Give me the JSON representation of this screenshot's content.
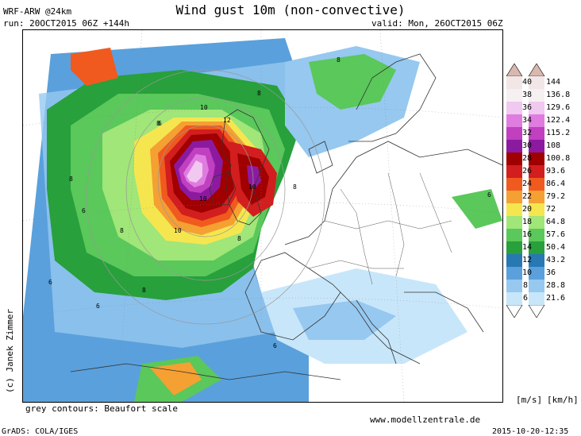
{
  "header": {
    "model": "WRF-ARW @24km",
    "title": "Wind gust 10m (non-convective)",
    "run": "run: 20OCT2015 06Z +144h",
    "valid": "valid: Mon, 26OCT2015 06Z"
  },
  "legend": {
    "units_left": "[m/s]",
    "units_right": "[km/h]",
    "levels": [
      {
        "mps": "40",
        "kmh": "144",
        "color": "#f2e6e6"
      },
      {
        "mps": "38",
        "kmh": "136.8",
        "color": "#f6f0f2"
      },
      {
        "mps": "36",
        "kmh": "129.6",
        "color": "#f0c8f0"
      },
      {
        "mps": "34",
        "kmh": "122.4",
        "color": "#e07ce0"
      },
      {
        "mps": "32",
        "kmh": "115.2",
        "color": "#c040c0"
      },
      {
        "mps": "30",
        "kmh": "108",
        "color": "#8c1aa0"
      },
      {
        "mps": "28",
        "kmh": "100.8",
        "color": "#a00000"
      },
      {
        "mps": "26",
        "kmh": "93.6",
        "color": "#d21e1e"
      },
      {
        "mps": "24",
        "kmh": "86.4",
        "color": "#f05a1e"
      },
      {
        "mps": "22",
        "kmh": "79.2",
        "color": "#f5a032"
      },
      {
        "mps": "20",
        "kmh": "72",
        "color": "#f5e650"
      },
      {
        "mps": "18",
        "kmh": "64.8",
        "color": "#a0e678"
      },
      {
        "mps": "16",
        "kmh": "57.6",
        "color": "#5ac85a"
      },
      {
        "mps": "14",
        "kmh": "50.4",
        "color": "#28a03c"
      },
      {
        "mps": "12",
        "kmh": "43.2",
        "color": "#2878b4"
      },
      {
        "mps": "10",
        "kmh": "36",
        "color": "#5aa0dc"
      },
      {
        "mps": "8",
        "kmh": "28.8",
        "color": "#96c8f0"
      },
      {
        "mps": "6",
        "kmh": "21.6",
        "color": "#c8e6fa"
      }
    ]
  },
  "footer": {
    "contours_note": "grey contours: Beaufort scale",
    "website": "www.modellzentrale.de",
    "grads": "GrADS: COLA/IGES",
    "timestamp": "2015-10-20-12:35",
    "copyright": "(c) Janek Zimmer"
  },
  "map": {
    "beaufort_labels": [
      "12",
      "10",
      "10",
      "10",
      "10",
      "8",
      "8",
      "8",
      "8",
      "8",
      "8",
      "8",
      "8",
      "6",
      "6",
      "6",
      "6",
      "6",
      "6"
    ]
  }
}
